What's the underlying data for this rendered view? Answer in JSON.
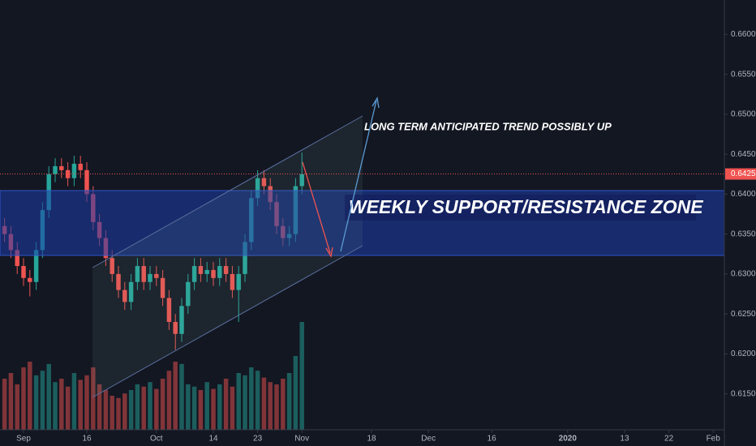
{
  "chart_data": {
    "type": "candlestick",
    "x": [
      -3,
      -2,
      -1,
      0,
      1,
      2,
      3,
      4,
      5,
      6,
      7,
      8,
      9,
      10,
      11,
      12,
      13,
      14,
      15,
      16,
      17,
      18,
      19,
      20,
      21,
      22,
      23,
      24,
      25,
      26,
      27,
      28,
      29,
      30,
      31,
      32,
      33,
      34,
      35,
      36,
      37,
      38,
      39,
      40,
      41,
      42,
      43,
      44
    ],
    "open": [
      0.636,
      0.635,
      0.633,
      0.631,
      0.6295,
      0.629,
      0.633,
      0.638,
      0.6425,
      0.6435,
      0.643,
      0.642,
      0.6438,
      0.643,
      0.64,
      0.6365,
      0.6345,
      0.632,
      0.63,
      0.628,
      0.6265,
      0.629,
      0.631,
      0.629,
      0.63,
      0.6295,
      0.627,
      0.624,
      0.6225,
      0.626,
      0.629,
      0.631,
      0.63,
      0.6305,
      0.6295,
      0.631,
      0.63,
      0.628,
      0.63,
      0.634,
      0.6395,
      0.642,
      0.641,
      0.639,
      0.636,
      0.6345,
      0.635,
      0.641
    ],
    "high": [
      0.637,
      0.636,
      0.634,
      0.632,
      0.6305,
      0.634,
      0.639,
      0.6435,
      0.6445,
      0.6445,
      0.644,
      0.6448,
      0.6448,
      0.644,
      0.641,
      0.6375,
      0.6355,
      0.633,
      0.631,
      0.629,
      0.63,
      0.632,
      0.632,
      0.631,
      0.631,
      0.6305,
      0.628,
      0.625,
      0.627,
      0.63,
      0.632,
      0.632,
      0.6315,
      0.6315,
      0.632,
      0.632,
      0.631,
      0.631,
      0.635,
      0.6405,
      0.643,
      0.643,
      0.642,
      0.64,
      0.637,
      0.636,
      0.642,
      0.6452
    ],
    "low": [
      0.634,
      0.632,
      0.63,
      0.6285,
      0.6272,
      0.628,
      0.632,
      0.637,
      0.6415,
      0.642,
      0.641,
      0.641,
      0.642,
      0.639,
      0.6355,
      0.6335,
      0.631,
      0.629,
      0.627,
      0.6255,
      0.6255,
      0.628,
      0.628,
      0.628,
      0.6285,
      0.626,
      0.623,
      0.6205,
      0.6215,
      0.625,
      0.628,
      0.629,
      0.629,
      0.6285,
      0.6285,
      0.629,
      0.627,
      0.624,
      0.629,
      0.633,
      0.6385,
      0.64,
      0.638,
      0.635,
      0.6335,
      0.6335,
      0.634,
      0.64
    ],
    "close": [
      0.635,
      0.633,
      0.631,
      0.6295,
      0.629,
      0.633,
      0.638,
      0.6425,
      0.6435,
      0.643,
      0.642,
      0.6438,
      0.643,
      0.64,
      0.6365,
      0.6345,
      0.632,
      0.63,
      0.628,
      0.6265,
      0.629,
      0.631,
      0.629,
      0.63,
      0.6295,
      0.627,
      0.624,
      0.6225,
      0.626,
      0.629,
      0.631,
      0.63,
      0.6305,
      0.6295,
      0.631,
      0.63,
      0.628,
      0.63,
      0.634,
      0.6395,
      0.642,
      0.641,
      0.639,
      0.636,
      0.6345,
      0.635,
      0.641,
      0.6425
    ],
    "volume": [
      45,
      50,
      40,
      55,
      60,
      48,
      52,
      58,
      42,
      45,
      38,
      50,
      44,
      48,
      55,
      40,
      35,
      30,
      28,
      32,
      35,
      40,
      38,
      42,
      36,
      45,
      52,
      60,
      58,
      40,
      38,
      35,
      42,
      36,
      40,
      45,
      38,
      50,
      48,
      55,
      52,
      46,
      42,
      40,
      45,
      50,
      65,
      95
    ],
    "volume_lim": [
      0,
      100
    ],
    "up_color": "#26a69a",
    "down_color": "#ef5350",
    "last_price": 0.64252,
    "xlim": [
      -3.72,
      110.77
    ],
    "ylim": [
      0.6105,
      0.6643
    ],
    "xticks": [
      {
        "value": 0,
        "label": "Sep"
      },
      {
        "value": 10,
        "label": "16"
      },
      {
        "value": 21,
        "label": "Oct"
      },
      {
        "value": 30,
        "label": "14"
      },
      {
        "value": 37,
        "label": "23"
      },
      {
        "value": 44,
        "label": "Nov"
      },
      {
        "value": 55,
        "label": "18"
      },
      {
        "value": 64,
        "label": "Dec"
      },
      {
        "value": 74,
        "label": "16"
      },
      {
        "value": 86,
        "label": "2020"
      },
      {
        "value": 95,
        "label": "13"
      },
      {
        "value": 102,
        "label": "22"
      },
      {
        "value": 109,
        "label": "Feb"
      }
    ],
    "yticks": [
      {
        "value": 0.615,
        "label": "0.61500"
      },
      {
        "value": 0.62,
        "label": "0.62000"
      },
      {
        "value": 0.625,
        "label": "0.62500"
      },
      {
        "value": 0.63,
        "label": "0.63000"
      },
      {
        "value": 0.635,
        "label": "0.63500"
      },
      {
        "value": 0.64,
        "label": "0.64000"
      },
      {
        "value": 0.645,
        "label": "0.64500"
      },
      {
        "value": 0.65,
        "label": "0.65000"
      },
      {
        "value": 0.655,
        "label": "0.65500"
      },
      {
        "value": 0.66,
        "label": "0.66000"
      }
    ],
    "annotations": [
      "LONG TERM ANTICIPATED TREND POSSIBLY UP",
      "WEEKLY SUPPORT/RESISTANCE ZONE"
    ]
  }
}
